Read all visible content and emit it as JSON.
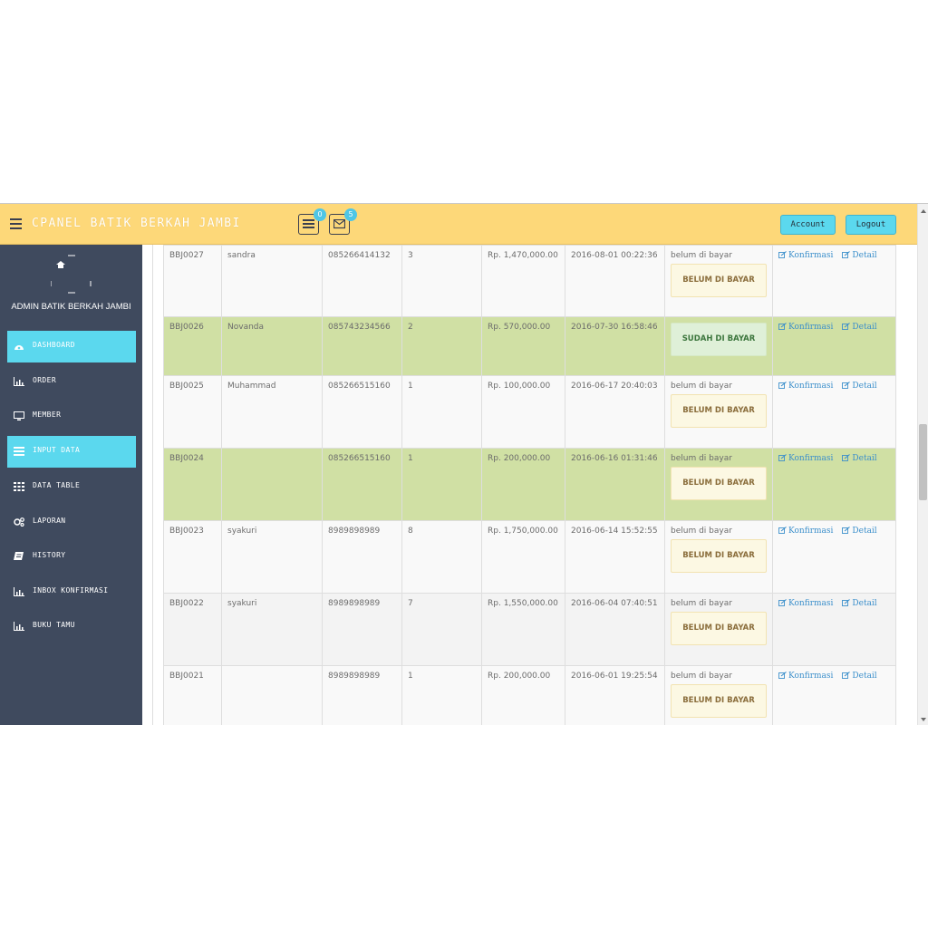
{
  "header": {
    "brand": "CPANEL BATIK BERKAH JAMBI",
    "orders_badge": "0",
    "mail_badge": "5",
    "account_label": "Account",
    "logout_label": "Logout"
  },
  "sidebar": {
    "admin_name": "ADMIN BATIK BERKAH JAMBI",
    "items": [
      {
        "label": "DASHBOARD",
        "icon": "dashboard-icon",
        "active": true
      },
      {
        "label": "ORDER",
        "icon": "bar-chart-icon",
        "active": false
      },
      {
        "label": "MEMBER",
        "icon": "desktop-icon",
        "active": false
      },
      {
        "label": "INPUT DATA",
        "icon": "list-icon",
        "active": true
      },
      {
        "label": "DATA TABLE",
        "icon": "table-icon",
        "active": false
      },
      {
        "label": "LAPORAN",
        "icon": "gears-icon",
        "active": false
      },
      {
        "label": "HISTORY",
        "icon": "book-icon",
        "active": false
      },
      {
        "label": "INBOX KONFIRMASI",
        "icon": "bar-chart-icon",
        "active": false
      },
      {
        "label": "BUKU TAMU",
        "icon": "bar-chart-icon",
        "active": false
      }
    ]
  },
  "table": {
    "actions": {
      "confirm": "Konfirmasi",
      "detail": "Detail"
    },
    "rows": [
      {
        "id": "BBJ0027",
        "name": "sandra",
        "phone": "085266414132",
        "qty": "3",
        "total": "Rp. 1,470,000.00",
        "date": "2016-08-01 00:22:36",
        "status_text": "belum di bayar",
        "status_box": "BELUM DI BAYAR"
      },
      {
        "id": "BBJ0026",
        "name": "Novanda",
        "phone": "085743234566",
        "qty": "2",
        "total": "Rp. 570,000.00",
        "date": "2016-07-30 16:58:46",
        "status_text": "",
        "status_box": "SUDAH DI BAYAR"
      },
      {
        "id": "BBJ0025",
        "name": "Muhammad",
        "phone": "085266515160",
        "qty": "1",
        "total": "Rp. 100,000.00",
        "date": "2016-06-17 20:40:03",
        "status_text": "belum di bayar",
        "status_box": "BELUM DI BAYAR"
      },
      {
        "id": "BBJ0024",
        "name": "",
        "phone": "085266515160",
        "qty": "1",
        "total": "Rp. 200,000.00",
        "date": "2016-06-16 01:31:46",
        "status_text": "belum di bayar",
        "status_box": "BELUM DI BAYAR"
      },
      {
        "id": "BBJ0023",
        "name": "syakuri",
        "phone": "8989898989",
        "qty": "8",
        "total": "Rp. 1,750,000.00",
        "date": "2016-06-14 15:52:55",
        "status_text": "belum di bayar",
        "status_box": "BELUM DI BAYAR"
      },
      {
        "id": "BBJ0022",
        "name": "syakuri",
        "phone": "8989898989",
        "qty": "7",
        "total": "Rp. 1,550,000.00",
        "date": "2016-06-04 07:40:51",
        "status_text": "belum di bayar",
        "status_box": "BELUM DI BAYAR"
      },
      {
        "id": "BBJ0021",
        "name": "",
        "phone": "8989898989",
        "qty": "1",
        "total": "Rp. 200,000.00",
        "date": "2016-06-01 19:25:54",
        "status_text": "belum di bayar",
        "status_box": "BELUM DI BAYAR"
      }
    ]
  },
  "colors": {
    "topbar": "#fdd879",
    "sidebar": "#3f4a5e",
    "accent": "#5bd8ee",
    "row_highlight": "#d0e0a4"
  }
}
